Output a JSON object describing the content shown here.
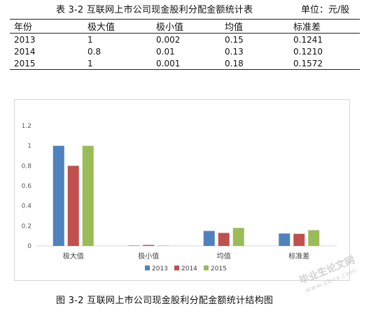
{
  "table": {
    "title": "表 3-2  互联网上市公司现金股利分配金额统计表",
    "unit": "单位：元/股",
    "headers": [
      "年份",
      "极大值",
      "极小值",
      "均值",
      "标准差"
    ],
    "rows": [
      [
        "2013",
        "1",
        "0.002",
        "0.15",
        "0.1241"
      ],
      [
        "2014",
        "0.8",
        "0.01",
        "0.13",
        "0.1210"
      ],
      [
        "2015",
        "1",
        "0.001",
        "0.18",
        "0.1572"
      ]
    ]
  },
  "chart_data": {
    "type": "bar",
    "categories": [
      "极大值",
      "极小值",
      "均值",
      "标准差"
    ],
    "series": [
      {
        "name": "2013",
        "values": [
          1,
          0.002,
          0.15,
          0.1241
        ],
        "color": "#4f81bd"
      },
      {
        "name": "2014",
        "values": [
          0.8,
          0.01,
          0.13,
          0.121
        ],
        "color": "#c0504d"
      },
      {
        "name": "2015",
        "values": [
          1,
          0.001,
          0.18,
          0.1572
        ],
        "color": "#9bbb59"
      }
    ],
    "yticks": [
      "0",
      "0.2",
      "0.4",
      "0.6",
      "0.8",
      "1",
      "1.2"
    ],
    "ylim": [
      0,
      1.2
    ],
    "grid": false,
    "legend_position": "bottom"
  },
  "caption": "图 3-2    互联网上市公司现金股利分配金额统计结构图",
  "watermark": {
    "text": "毕业生论文网",
    "sub": "www.sbvv.com"
  }
}
